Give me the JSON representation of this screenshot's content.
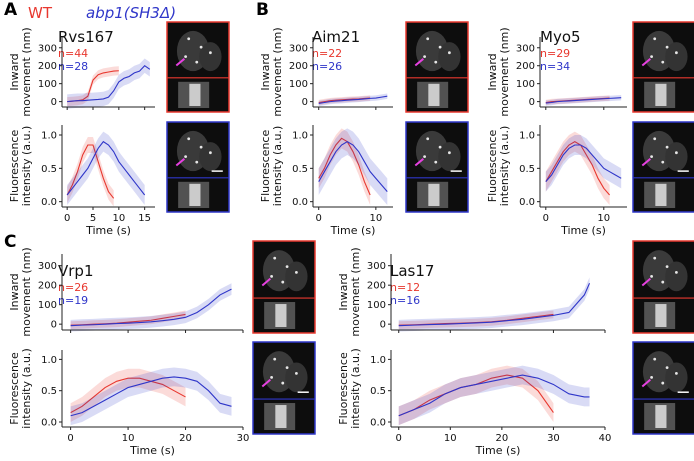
{
  "legend": {
    "wt": "WT",
    "mutant": "abp1(SH3Δ)"
  },
  "colors": {
    "wt": "#e8382f",
    "mutant": "#2f36c9",
    "magenta": "#e640e0",
    "axis": "#222222"
  },
  "chart_data": [
    {
      "panel_letter": "A",
      "protein": "Rvs167",
      "type": "line",
      "n_wt": "n=44",
      "n_mut": "n=28",
      "xlim": [
        -1,
        17
      ],
      "xticks": [
        0,
        5,
        10,
        15
      ],
      "xtick_labels": [
        "0",
        "5",
        "10",
        "15"
      ],
      "xlabel": "Time (s)",
      "movement": {
        "ylabel": [
          "Inward",
          "movement (nm)"
        ],
        "ylim": [
          -30,
          360
        ],
        "yticks": [
          0,
          100,
          200,
          300
        ],
        "ytick_labels": [
          "0",
          "100",
          "200",
          "300"
        ],
        "series": [
          {
            "name": "WT",
            "x": [
              0,
              1,
              2,
              3,
              4,
              5,
              6,
              7,
              8,
              9,
              10
            ],
            "y": [
              0,
              2,
              5,
              10,
              30,
              120,
              150,
              160,
              165,
              170,
              172
            ],
            "band": 25
          },
          {
            "name": "abp1(SH3Δ)",
            "x": [
              0,
              1,
              2,
              3,
              4,
              5,
              6,
              7,
              8,
              9,
              10,
              11,
              12,
              13,
              14,
              15,
              16
            ],
            "y": [
              0,
              3,
              5,
              5,
              8,
              10,
              12,
              15,
              25,
              60,
              110,
              130,
              140,
              160,
              170,
              200,
              180
            ],
            "band": 40
          }
        ]
      },
      "intensity": {
        "ylabel": [
          "Fluorescence",
          "intensity (a.u.)"
        ],
        "ylim": [
          -0.08,
          1.15
        ],
        "yticks": [
          0,
          0.5,
          1.0
        ],
        "ytick_labels": [
          "0.0",
          "0.5",
          "1.0"
        ],
        "series": [
          {
            "name": "WT",
            "x": [
              0,
              1,
              2,
              3,
              4,
              5,
              6,
              7,
              8,
              9
            ],
            "y": [
              0.1,
              0.25,
              0.45,
              0.7,
              0.85,
              0.85,
              0.6,
              0.35,
              0.15,
              0.05
            ],
            "band": 0.12
          },
          {
            "name": "abp1(SH3Δ)",
            "x": [
              0,
              1,
              2,
              3,
              4,
              5,
              6,
              7,
              8,
              9,
              10,
              11,
              12,
              13,
              14,
              15
            ],
            "y": [
              0.1,
              0.2,
              0.3,
              0.4,
              0.5,
              0.65,
              0.8,
              0.9,
              0.85,
              0.75,
              0.6,
              0.5,
              0.4,
              0.3,
              0.2,
              0.1
            ],
            "band": 0.15
          }
        ]
      }
    },
    {
      "panel_letter": "B",
      "protein": "Aim21",
      "type": "line",
      "n_wt": "n=22",
      "n_mut": "n=26",
      "xlim": [
        -1,
        13
      ],
      "xticks": [
        0,
        10
      ],
      "xtick_labels": [
        "0",
        "10"
      ],
      "xlabel": "Time (s)",
      "movement": {
        "ylabel": [
          "Inward",
          "movement (nm)"
        ],
        "ylim": [
          -30,
          360
        ],
        "yticks": [
          0,
          100,
          200,
          300
        ],
        "ytick_labels": [
          "0",
          "100",
          "200",
          "300"
        ],
        "series": [
          {
            "name": "WT",
            "x": [
              0,
              1,
              2,
              3,
              4,
              5,
              6,
              7,
              8,
              9
            ],
            "y": [
              -5,
              0,
              5,
              8,
              10,
              12,
              14,
              15,
              18,
              20
            ],
            "band": 15
          },
          {
            "name": "abp1(SH3Δ)",
            "x": [
              0,
              1,
              2,
              3,
              4,
              5,
              6,
              7,
              8,
              9,
              10,
              11,
              12
            ],
            "y": [
              -10,
              -5,
              0,
              3,
              5,
              8,
              10,
              12,
              15,
              18,
              20,
              25,
              30
            ],
            "band": 15
          }
        ]
      },
      "intensity": {
        "ylabel": [
          "Fluorescence",
          "intensity (a.u.)"
        ],
        "ylim": [
          -0.08,
          1.15
        ],
        "yticks": [
          0,
          0.5,
          1.0
        ],
        "ytick_labels": [
          "0.0",
          "0.5",
          "1.0"
        ],
        "series": [
          {
            "name": "WT",
            "x": [
              0,
              1,
              2,
              3,
              4,
              5,
              6,
              7,
              8,
              9
            ],
            "y": [
              0.35,
              0.5,
              0.7,
              0.85,
              0.95,
              0.9,
              0.75,
              0.55,
              0.3,
              0.1
            ],
            "band": 0.15
          },
          {
            "name": "abp1(SH3Δ)",
            "x": [
              0,
              1,
              2,
              3,
              4,
              5,
              6,
              7,
              8,
              9,
              10,
              11,
              12
            ],
            "y": [
              0.3,
              0.45,
              0.6,
              0.75,
              0.85,
              0.9,
              0.85,
              0.75,
              0.6,
              0.45,
              0.35,
              0.25,
              0.15
            ],
            "band": 0.2
          }
        ]
      }
    },
    {
      "panel_letter": "",
      "protein": "Myo5",
      "type": "line",
      "n_wt": "n=29",
      "n_mut": "n=34",
      "xlim": [
        -1,
        14
      ],
      "xticks": [
        0,
        10
      ],
      "xtick_labels": [
        "0",
        "10"
      ],
      "xlabel": "Time (s)",
      "movement": {
        "ylabel": [
          "Inward",
          "movement (nm)"
        ],
        "ylim": [
          -30,
          360
        ],
        "yticks": [
          0,
          100,
          200,
          300
        ],
        "ytick_labels": [
          "0",
          "100",
          "200",
          "300"
        ],
        "series": [
          {
            "name": "WT",
            "x": [
              0,
              1,
              2,
              3,
              4,
              5,
              6,
              7,
              8,
              9,
              10,
              11
            ],
            "y": [
              -5,
              0,
              2,
              4,
              6,
              8,
              10,
              12,
              14,
              16,
              18,
              20
            ],
            "band": 15
          },
          {
            "name": "abp1(SH3Δ)",
            "x": [
              0,
              1,
              2,
              3,
              4,
              5,
              6,
              7,
              8,
              9,
              10,
              11,
              12,
              13
            ],
            "y": [
              -8,
              -5,
              0,
              2,
              4,
              6,
              8,
              10,
              12,
              14,
              16,
              18,
              20,
              22
            ],
            "band": 15
          }
        ]
      },
      "intensity": {
        "ylabel": [
          "Fluorescence",
          "intensity (a.u.)"
        ],
        "ylim": [
          -0.08,
          1.15
        ],
        "yticks": [
          0,
          0.5,
          1.0
        ],
        "ytick_labels": [
          "0.0",
          "0.5",
          "1.0"
        ],
        "series": [
          {
            "name": "WT",
            "x": [
              0,
              1,
              2,
              3,
              4,
              5,
              6,
              7,
              8,
              9,
              10,
              11
            ],
            "y": [
              0.3,
              0.45,
              0.6,
              0.75,
              0.85,
              0.9,
              0.85,
              0.7,
              0.55,
              0.35,
              0.2,
              0.1
            ],
            "band": 0.15
          },
          {
            "name": "abp1(SH3Δ)",
            "x": [
              0,
              1,
              2,
              3,
              4,
              5,
              6,
              7,
              8,
              9,
              10,
              11,
              12,
              13
            ],
            "y": [
              0.3,
              0.4,
              0.55,
              0.7,
              0.8,
              0.85,
              0.85,
              0.8,
              0.7,
              0.6,
              0.5,
              0.45,
              0.4,
              0.35
            ],
            "band": 0.15
          }
        ]
      }
    },
    {
      "panel_letter": "C",
      "protein": "Vrp1",
      "type": "line",
      "n_wt": "n=26",
      "n_mut": "n=19",
      "xlim": [
        -1.5,
        30
      ],
      "xticks": [
        0,
        10,
        20,
        30
      ],
      "xtick_labels": [
        "0",
        "10",
        "20",
        "30"
      ],
      "xlabel": "Time (s)",
      "movement": {
        "ylabel": [
          "Inward",
          "movement (nm)"
        ],
        "ylim": [
          -30,
          360
        ],
        "yticks": [
          0,
          100,
          200,
          300
        ],
        "ytick_labels": [
          "0",
          "100",
          "200",
          "300"
        ],
        "series": [
          {
            "name": "WT",
            "x": [
              0,
              2,
              4,
              6,
              8,
              10,
              12,
              14,
              16,
              18,
              20
            ],
            "y": [
              -5,
              -3,
              0,
              2,
              5,
              10,
              15,
              20,
              30,
              40,
              50
            ],
            "band": 20
          },
          {
            "name": "abp1(SH3Δ)",
            "x": [
              0,
              2,
              4,
              6,
              8,
              10,
              12,
              14,
              16,
              18,
              20,
              22,
              24,
              26,
              28
            ],
            "y": [
              -8,
              -5,
              -3,
              0,
              3,
              5,
              8,
              12,
              18,
              25,
              35,
              60,
              100,
              150,
              180
            ],
            "band": 30
          }
        ]
      },
      "intensity": {
        "ylabel": [
          "Fluorescence",
          "intensity (a.u.)"
        ],
        "ylim": [
          -0.08,
          1.15
        ],
        "yticks": [
          0,
          0.5,
          1.0
        ],
        "ytick_labels": [
          "0.0",
          "0.5",
          "1.0"
        ],
        "series": [
          {
            "name": "WT",
            "x": [
              0,
              2,
              4,
              6,
              8,
              10,
              12,
              14,
              16,
              18,
              20
            ],
            "y": [
              0.15,
              0.25,
              0.4,
              0.55,
              0.65,
              0.7,
              0.7,
              0.65,
              0.6,
              0.5,
              0.4
            ],
            "band": 0.15
          },
          {
            "name": "abp1(SH3Δ)",
            "x": [
              0,
              2,
              4,
              6,
              8,
              10,
              12,
              14,
              16,
              18,
              20,
              22,
              24,
              26,
              28
            ],
            "y": [
              0.1,
              0.15,
              0.25,
              0.35,
              0.45,
              0.55,
              0.6,
              0.65,
              0.7,
              0.72,
              0.7,
              0.65,
              0.5,
              0.3,
              0.25
            ],
            "band": 0.15
          }
        ]
      }
    },
    {
      "panel_letter": "",
      "protein": "Las17",
      "type": "line",
      "n_wt": "n=12",
      "n_mut": "n=16",
      "xlim": [
        -1.5,
        40
      ],
      "xticks": [
        0,
        10,
        20,
        30,
        40
      ],
      "xtick_labels": [
        "0",
        "10",
        "20",
        "30",
        "40"
      ],
      "xlabel": "Time (s)",
      "movement": {
        "ylabel": [
          "Inward",
          "movement (nm)"
        ],
        "ylim": [
          -30,
          360
        ],
        "yticks": [
          0,
          100,
          200,
          300
        ],
        "ytick_labels": [
          "0",
          "100",
          "200",
          "300"
        ],
        "series": [
          {
            "name": "WT",
            "x": [
              0,
              3,
              6,
              9,
              12,
              15,
              18,
              21,
              24,
              27,
              30
            ],
            "y": [
              -5,
              -3,
              0,
              3,
              5,
              8,
              12,
              20,
              30,
              40,
              50
            ],
            "band": 20
          },
          {
            "name": "abp1(SH3Δ)",
            "x": [
              0,
              3,
              6,
              9,
              12,
              15,
              18,
              21,
              24,
              27,
              30,
              33,
              36,
              37
            ],
            "y": [
              -8,
              -5,
              -2,
              0,
              3,
              6,
              10,
              18,
              25,
              35,
              45,
              60,
              150,
              210
            ],
            "band": 30
          }
        ]
      },
      "intensity": {
        "ylabel": [
          "Fluorescence",
          "intensity (a.u.)"
        ],
        "ylim": [
          -0.08,
          1.15
        ],
        "yticks": [
          0,
          0.5,
          1.0
        ],
        "ytick_labels": [
          "0.0",
          "0.5",
          "1.0"
        ],
        "series": [
          {
            "name": "WT",
            "x": [
              0,
              3,
              6,
              9,
              12,
              15,
              18,
              21,
              24,
              27,
              30
            ],
            "y": [
              0.1,
              0.2,
              0.35,
              0.45,
              0.55,
              0.6,
              0.7,
              0.75,
              0.7,
              0.5,
              0.15
            ],
            "band": 0.15
          },
          {
            "name": "abp1(SH3Δ)",
            "x": [
              0,
              3,
              6,
              9,
              12,
              15,
              18,
              21,
              24,
              27,
              30,
              33,
              36,
              37
            ],
            "y": [
              0.1,
              0.2,
              0.3,
              0.45,
              0.55,
              0.6,
              0.65,
              0.7,
              0.75,
              0.7,
              0.6,
              0.45,
              0.4,
              0.4
            ],
            "band": 0.15
          }
        ]
      }
    }
  ]
}
